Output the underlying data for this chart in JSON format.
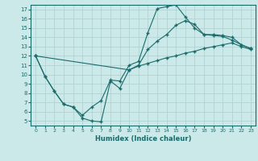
{
  "xlabel": "Humidex (Indice chaleur)",
  "bg_color": "#cce9e9",
  "line_color": "#1a6b6b",
  "grid_color": "#aacece",
  "xlim_min": -0.5,
  "xlim_max": 23.5,
  "ylim_min": 4.5,
  "ylim_max": 17.5,
  "xticks": [
    0,
    1,
    2,
    3,
    4,
    5,
    6,
    7,
    8,
    9,
    10,
    11,
    12,
    13,
    14,
    15,
    16,
    17,
    18,
    19,
    20,
    21,
    22,
    23
  ],
  "yticks": [
    5,
    6,
    7,
    8,
    9,
    10,
    11,
    12,
    13,
    14,
    15,
    16,
    17
  ],
  "line1_x": [
    0,
    1,
    2,
    3,
    4,
    5,
    6,
    7,
    8,
    9,
    10,
    11,
    12,
    13,
    14,
    15,
    16,
    17,
    18,
    19,
    20,
    21,
    22,
    23
  ],
  "line1_y": [
    12,
    9.8,
    8.2,
    6.8,
    6.5,
    5.3,
    5.0,
    4.9,
    9.3,
    8.5,
    10.5,
    10.9,
    11.2,
    11.5,
    11.8,
    12.0,
    12.3,
    12.5,
    12.8,
    13.0,
    13.2,
    13.4,
    13.0,
    12.7
  ],
  "line2_x": [
    0,
    1,
    2,
    3,
    4,
    5,
    6,
    7,
    8,
    9,
    10,
    11,
    12,
    13,
    14,
    15,
    16,
    17,
    18,
    19,
    20,
    21,
    22,
    23
  ],
  "line2_y": [
    12,
    9.8,
    8.2,
    6.8,
    6.5,
    5.6,
    6.5,
    7.2,
    9.4,
    9.3,
    11.0,
    11.4,
    14.5,
    17.1,
    17.3,
    17.5,
    16.2,
    15.0,
    14.3,
    14.3,
    14.2,
    14.0,
    13.2,
    12.8
  ],
  "line3_x": [
    0,
    10,
    11,
    12,
    13,
    14,
    15,
    16,
    17,
    18,
    19,
    20,
    21,
    22,
    23
  ],
  "line3_y": [
    12,
    10.5,
    11.0,
    12.7,
    13.6,
    14.3,
    15.3,
    15.8,
    15.4,
    14.3,
    14.2,
    14.1,
    13.7,
    13.2,
    12.8
  ]
}
